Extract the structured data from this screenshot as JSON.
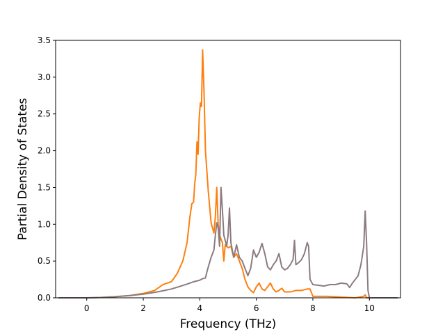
{
  "chart_data": {
    "type": "line",
    "title": "",
    "xlabel": "Frequency (THz)",
    "ylabel": "Partial Density of States",
    "xlim": [
      -1.1,
      11.1
    ],
    "ylim": [
      0,
      3.5
    ],
    "xticks": [
      0,
      2,
      4,
      6,
      8,
      10
    ],
    "yticks": [
      0.0,
      0.5,
      1.0,
      1.5,
      2.0,
      2.5,
      3.0,
      3.5
    ],
    "xtick_labels": [
      "0",
      "2",
      "4",
      "6",
      "8",
      "10"
    ],
    "ytick_labels": [
      "0.0",
      "0.5",
      "1.0",
      "1.5",
      "2.0",
      "2.5",
      "3.0",
      "3.5"
    ],
    "grid": false,
    "legend": "none",
    "series": [
      {
        "color": "#ff7f0e",
        "points": [
          [
            -1.0,
            0.0
          ],
          [
            0.0,
            0.0
          ],
          [
            0.5,
            0.005
          ],
          [
            1.0,
            0.015
          ],
          [
            1.5,
            0.03
          ],
          [
            2.0,
            0.06
          ],
          [
            2.4,
            0.1
          ],
          [
            2.7,
            0.18
          ],
          [
            3.0,
            0.22
          ],
          [
            3.2,
            0.33
          ],
          [
            3.4,
            0.5
          ],
          [
            3.55,
            0.75
          ],
          [
            3.65,
            1.1
          ],
          [
            3.72,
            1.28
          ],
          [
            3.78,
            1.3
          ],
          [
            3.82,
            1.55
          ],
          [
            3.86,
            1.68
          ],
          [
            3.9,
            2.12
          ],
          [
            3.94,
            1.95
          ],
          [
            3.98,
            2.45
          ],
          [
            4.02,
            2.65
          ],
          [
            4.06,
            2.6
          ],
          [
            4.1,
            3.37
          ],
          [
            4.15,
            2.8
          ],
          [
            4.2,
            2.0
          ],
          [
            4.3,
            1.45
          ],
          [
            4.4,
            1.02
          ],
          [
            4.5,
            0.88
          ],
          [
            4.55,
            1.1
          ],
          [
            4.6,
            1.5
          ],
          [
            4.65,
            1.0
          ],
          [
            4.7,
            0.85
          ],
          [
            4.75,
            0.8
          ],
          [
            4.8,
            0.75
          ],
          [
            4.85,
            0.5
          ],
          [
            4.9,
            0.72
          ],
          [
            5.0,
            0.68
          ],
          [
            5.1,
            0.7
          ],
          [
            5.2,
            0.55
          ],
          [
            5.3,
            0.6
          ],
          [
            5.4,
            0.5
          ],
          [
            5.5,
            0.4
          ],
          [
            5.6,
            0.25
          ],
          [
            5.7,
            0.15
          ],
          [
            5.8,
            0.1
          ],
          [
            5.9,
            0.07
          ],
          [
            6.0,
            0.15
          ],
          [
            6.1,
            0.2
          ],
          [
            6.2,
            0.12
          ],
          [
            6.3,
            0.1
          ],
          [
            6.4,
            0.15
          ],
          [
            6.5,
            0.2
          ],
          [
            6.6,
            0.12
          ],
          [
            6.7,
            0.08
          ],
          [
            6.8,
            0.1
          ],
          [
            6.9,
            0.13
          ],
          [
            7.0,
            0.08
          ],
          [
            7.2,
            0.08
          ],
          [
            7.4,
            0.1
          ],
          [
            7.6,
            0.1
          ],
          [
            7.8,
            0.12
          ],
          [
            7.9,
            0.12
          ],
          [
            8.0,
            0.02
          ],
          [
            8.5,
            0.02
          ],
          [
            9.0,
            0.01
          ],
          [
            9.5,
            0.0
          ],
          [
            9.8,
            0.02
          ],
          [
            9.85,
            0.04
          ],
          [
            9.9,
            0.0
          ],
          [
            10.0,
            0.0
          ],
          [
            11.0,
            0.0
          ]
        ]
      },
      {
        "color": "#8c7b80",
        "points": [
          [
            -1.0,
            0.0
          ],
          [
            0.0,
            0.0
          ],
          [
            0.5,
            0.005
          ],
          [
            1.0,
            0.015
          ],
          [
            1.5,
            0.03
          ],
          [
            2.0,
            0.05
          ],
          [
            2.5,
            0.08
          ],
          [
            3.0,
            0.12
          ],
          [
            3.5,
            0.18
          ],
          [
            3.8,
            0.22
          ],
          [
            4.0,
            0.24
          ],
          [
            4.1,
            0.26
          ],
          [
            4.2,
            0.27
          ],
          [
            4.25,
            0.35
          ],
          [
            4.3,
            0.42
          ],
          [
            4.4,
            0.55
          ],
          [
            4.5,
            0.65
          ],
          [
            4.55,
            0.85
          ],
          [
            4.6,
            1.02
          ],
          [
            4.65,
            0.95
          ],
          [
            4.7,
            0.7
          ],
          [
            4.75,
            1.5
          ],
          [
            4.8,
            1.2
          ],
          [
            4.85,
            0.85
          ],
          [
            4.9,
            0.78
          ],
          [
            4.95,
            0.7
          ],
          [
            5.0,
            0.85
          ],
          [
            5.05,
            1.22
          ],
          [
            5.1,
            0.75
          ],
          [
            5.2,
            0.55
          ],
          [
            5.3,
            0.72
          ],
          [
            5.4,
            0.55
          ],
          [
            5.5,
            0.5
          ],
          [
            5.6,
            0.4
          ],
          [
            5.7,
            0.3
          ],
          [
            5.8,
            0.4
          ],
          [
            5.9,
            0.65
          ],
          [
            6.0,
            0.55
          ],
          [
            6.1,
            0.62
          ],
          [
            6.2,
            0.74
          ],
          [
            6.3,
            0.6
          ],
          [
            6.4,
            0.42
          ],
          [
            6.5,
            0.38
          ],
          [
            6.6,
            0.45
          ],
          [
            6.7,
            0.5
          ],
          [
            6.8,
            0.6
          ],
          [
            6.9,
            0.42
          ],
          [
            7.0,
            0.38
          ],
          [
            7.1,
            0.4
          ],
          [
            7.2,
            0.45
          ],
          [
            7.3,
            0.52
          ],
          [
            7.35,
            0.78
          ],
          [
            7.4,
            0.45
          ],
          [
            7.5,
            0.48
          ],
          [
            7.6,
            0.52
          ],
          [
            7.7,
            0.6
          ],
          [
            7.8,
            0.75
          ],
          [
            7.85,
            0.7
          ],
          [
            7.9,
            0.25
          ],
          [
            8.0,
            0.18
          ],
          [
            8.2,
            0.17
          ],
          [
            8.4,
            0.16
          ],
          [
            8.6,
            0.18
          ],
          [
            8.8,
            0.18
          ],
          [
            9.0,
            0.2
          ],
          [
            9.2,
            0.19
          ],
          [
            9.3,
            0.14
          ],
          [
            9.4,
            0.2
          ],
          [
            9.5,
            0.25
          ],
          [
            9.6,
            0.3
          ],
          [
            9.7,
            0.45
          ],
          [
            9.8,
            0.7
          ],
          [
            9.85,
            1.18
          ],
          [
            9.9,
            0.75
          ],
          [
            9.95,
            0.1
          ],
          [
            10.0,
            0.0
          ],
          [
            11.0,
            0.0
          ]
        ]
      }
    ]
  }
}
